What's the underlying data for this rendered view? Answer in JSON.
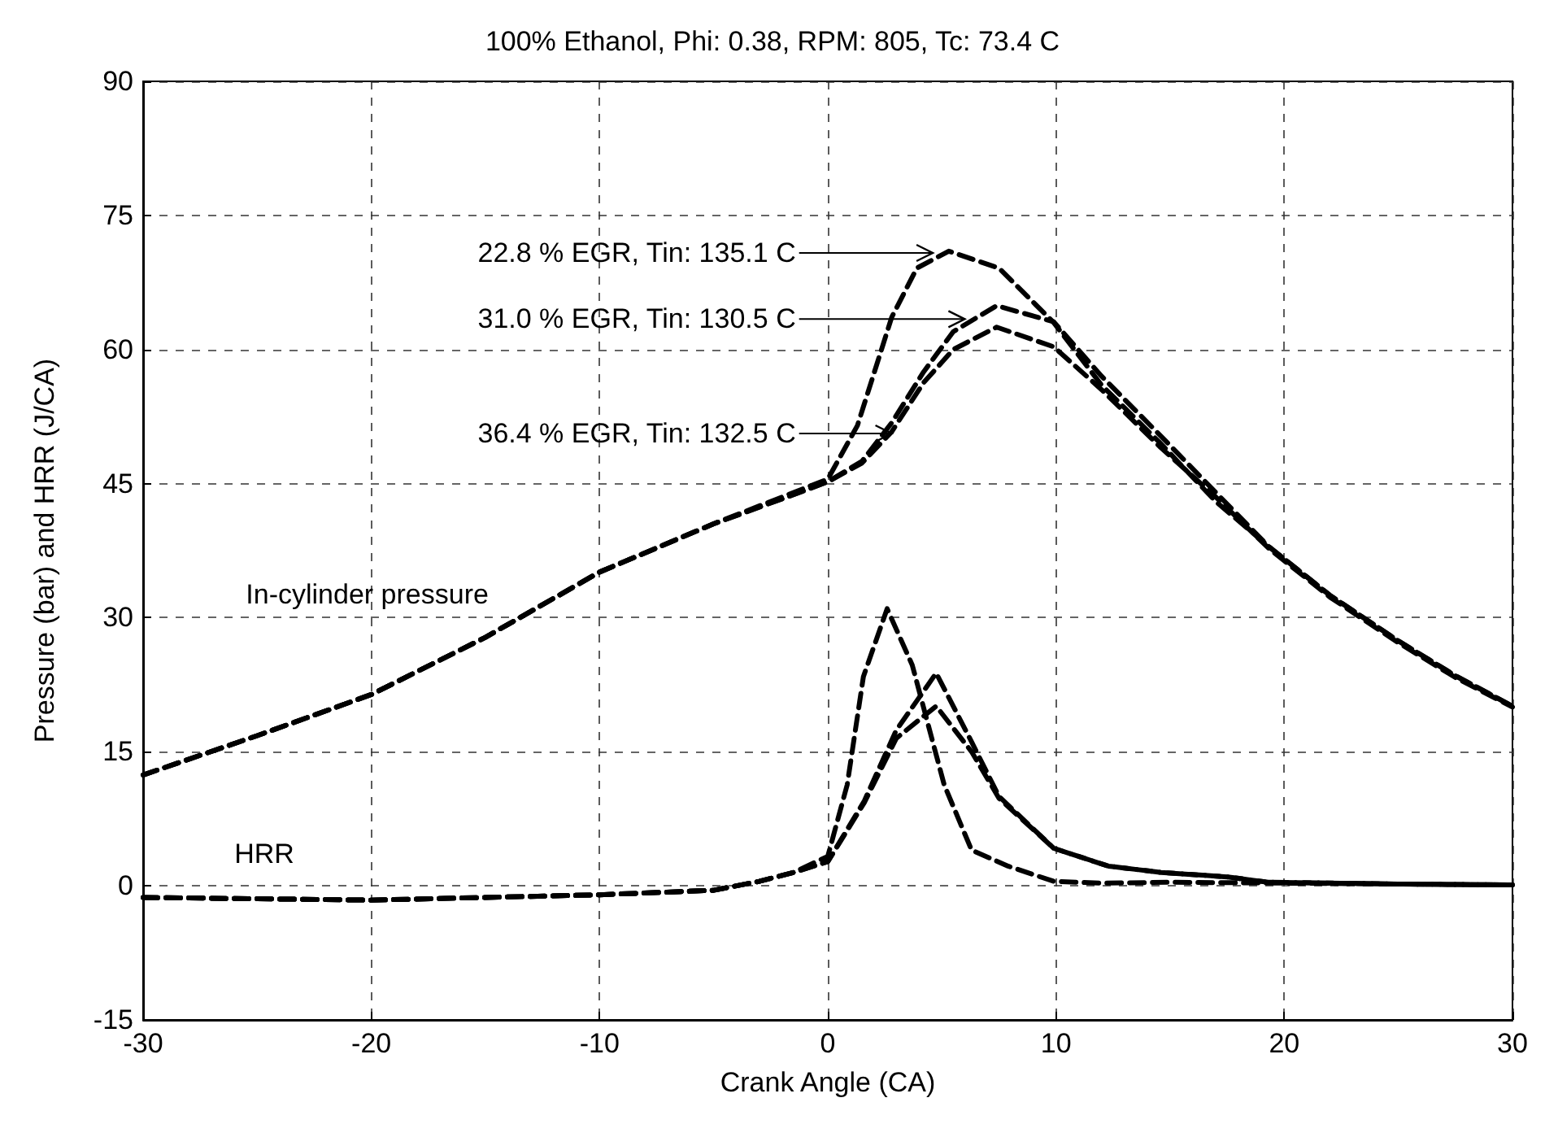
{
  "chart_data": {
    "type": "line",
    "title": "100% Ethanol, Phi: 0.38, RPM: 805, Tc: 73.4 C",
    "xlabel": "Crank Angle (CA)",
    "ylabel": "Pressure (bar) and HRR (J/CA)",
    "xlim": [
      -30,
      30
    ],
    "xticks": [
      -30,
      -20,
      -10,
      0,
      10,
      20,
      30
    ],
    "ylim": [
      -15,
      90
    ],
    "yticks": [
      -15,
      0,
      15,
      30,
      45,
      60,
      75,
      90
    ],
    "grid": true,
    "marker": "none",
    "line_style": "dashed",
    "annotations": [
      "22.8 % EGR, Tin: 135.1 C",
      {
        "text": "31.0 % EGR, Tin: 130.5 C",
        "x": 6.0,
        "y": 63.4
      },
      "36.4 % EGR, Tin: 132.5 C",
      "In-cylinder pressure",
      "HRR"
    ],
    "series": [
      {
        "color": "#000000",
        "x": [
          -30,
          -25,
          -20,
          -15,
          -10,
          -5,
          -2,
          0,
          1.3,
          2.8,
          3.9,
          5.3,
          7.5,
          9.9,
          12,
          14.5,
          17,
          19.3,
          22,
          25,
          27.5,
          30
        ],
        "values": [
          12.4,
          16.8,
          21.4,
          27.8,
          35.1,
          40.5,
          43.5,
          45.5,
          51.5,
          63.6,
          69.1,
          71,
          69.1,
          63,
          56,
          49.7,
          43,
          38,
          32.5,
          27.4,
          23.5,
          20.1
        ]
      },
      {
        "color": "#000000",
        "x": [
          -30,
          -25,
          -20,
          -15,
          -10,
          -5,
          -2,
          0,
          1.5,
          2.8,
          4.2,
          5.5,
          7.4,
          9.9,
          12,
          14.6,
          17,
          19.3,
          22,
          25,
          27.5,
          30
        ],
        "values": [
          12.4,
          16.8,
          21.4,
          27.8,
          35.1,
          40.5,
          43.3,
          45.2,
          47.5,
          51.8,
          57.5,
          62,
          64.9,
          63.1,
          57,
          50.3,
          44,
          38,
          32.5,
          27.4,
          23.5,
          20.1
        ]
      },
      {
        "color": "#000000",
        "x": [
          -30,
          -25,
          -20,
          -15,
          -10,
          -5,
          -2,
          0,
          1.5,
          2.8,
          4.2,
          5.5,
          7.4,
          9.9,
          12,
          14.6,
          17,
          19.3,
          22,
          25,
          27.5,
          30
        ],
        "values": [
          12.4,
          16.8,
          21.4,
          27.8,
          35.1,
          40.5,
          43.3,
          45.2,
          47.3,
          50.8,
          56.3,
          60,
          62.5,
          60.3,
          55.5,
          49,
          43.5,
          37.8,
          32.3,
          27.2,
          23.3,
          20
        ]
      },
      {
        "color": "#000000",
        "x": [
          -30,
          -20,
          -10,
          -5,
          -3,
          -1.5,
          0,
          0.85,
          1.56,
          2.6,
          3.7,
          5.1,
          6.3,
          7.9,
          9.9,
          12,
          15,
          20,
          25,
          30
        ],
        "values": [
          -1.3,
          -1.6,
          -1.0,
          -0.5,
          0.5,
          1.5,
          3.3,
          11.3,
          23.4,
          31,
          24.7,
          11.3,
          4,
          2.2,
          0.5,
          0.3,
          0.4,
          0.3,
          0.2,
          0.1
        ]
      },
      {
        "color": "#000000",
        "x": [
          -30,
          -20,
          -10,
          -5,
          -3,
          -1.5,
          0,
          1.6,
          3,
          4.75,
          6.3,
          7.5,
          9.9,
          12.3,
          14.6,
          17.5,
          19.3,
          25,
          30
        ],
        "values": [
          -1.3,
          -1.6,
          -1.0,
          -0.5,
          0.5,
          1.5,
          2.7,
          9.5,
          17.4,
          23.8,
          16.1,
          10,
          4.2,
          2.2,
          1.5,
          1,
          0.4,
          0.2,
          0.1
        ]
      },
      {
        "color": "#000000",
        "x": [
          -30,
          -20,
          -10,
          -5,
          -3,
          -1.5,
          0,
          1.6,
          3,
          4.75,
          6.3,
          7.5,
          9.9,
          12.3,
          14.6,
          17.5,
          19.3,
          25,
          30
        ],
        "values": [
          -1.3,
          -1.6,
          -1.0,
          -0.5,
          0.5,
          1.5,
          2.7,
          9.3,
          16.5,
          20.1,
          15,
          9.8,
          4.2,
          2.2,
          1.5,
          1,
          0.4,
          0.2,
          0.1
        ]
      }
    ]
  }
}
